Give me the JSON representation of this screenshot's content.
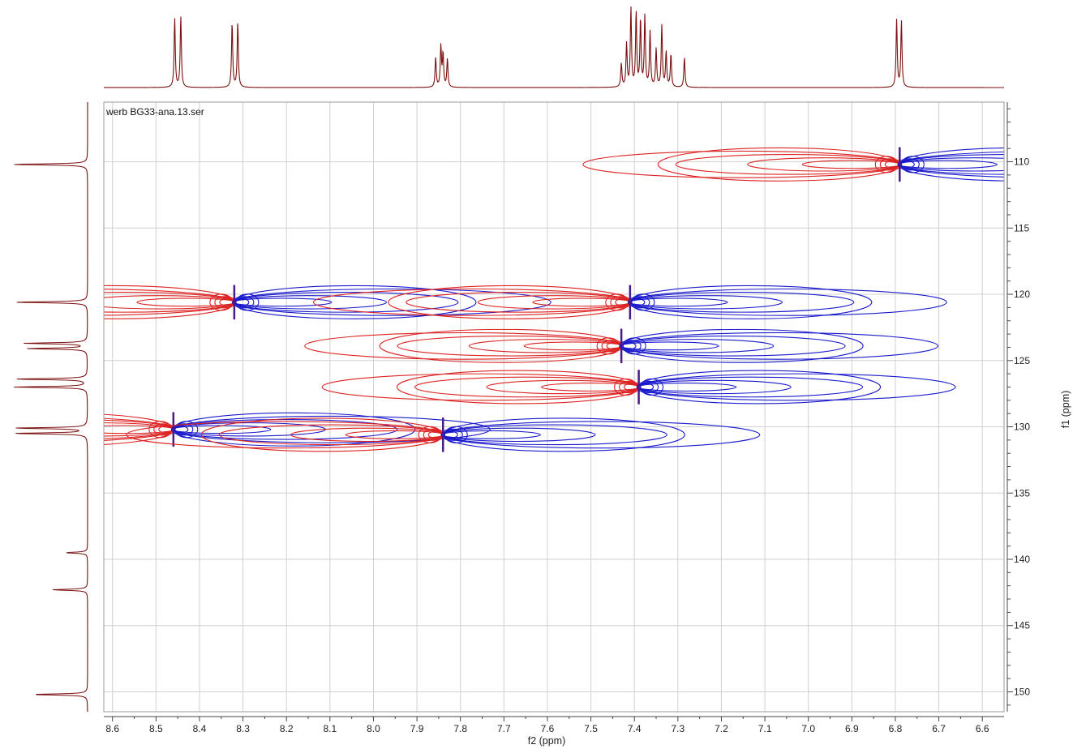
{
  "chart_data": {
    "type": "contour-2d-nmr",
    "dataset_label": "werb BG33-ana.13.ser",
    "xlabel": "f2 (ppm)",
    "ylabel": "f1 (ppm)",
    "xlim": [
      8.62,
      6.55
    ],
    "ylim": [
      105.5,
      151.5
    ],
    "x_ticks": [
      8.6,
      8.5,
      8.4,
      8.3,
      8.2,
      8.1,
      8.0,
      7.9,
      7.8,
      7.7,
      7.6,
      7.5,
      7.4,
      7.3,
      7.2,
      7.1,
      7.0,
      6.9,
      6.8,
      6.7,
      6.6
    ],
    "x_tick_labels": [
      "8.6",
      "8.5",
      "8.4",
      "8.3",
      "8.2",
      "8.1",
      "8.0",
      "7.9",
      "7.8",
      "7.7",
      "7.6",
      "7.5",
      "7.4",
      "7.3",
      "7.2",
      "7.1",
      "7.0",
      "6.9",
      "6.8",
      "6.7",
      "6.6"
    ],
    "y_ticks": [
      110,
      115,
      120,
      125,
      130,
      135,
      140,
      145,
      150
    ],
    "y_tick_labels": [
      "110",
      "115",
      "120",
      "125",
      "130",
      "135",
      "140",
      "145",
      "150"
    ],
    "grid": true,
    "colors": {
      "positive_contour": "#1a1acc",
      "negative_contour": "#dd2222",
      "projection": "#7a0f0f",
      "grid": "#d0d0d0"
    },
    "cross_peaks": [
      {
        "f2": 6.79,
        "f1": 110.2
      },
      {
        "f2": 8.32,
        "f1": 120.6
      },
      {
        "f2": 7.41,
        "f1": 120.6
      },
      {
        "f2": 7.43,
        "f1": 123.9
      },
      {
        "f2": 7.39,
        "f1": 127.0
      },
      {
        "f2": 8.46,
        "f1": 130.2
      },
      {
        "f2": 7.84,
        "f1": 130.6
      }
    ],
    "f2_projection_peaks": [
      {
        "ppm": 8.457,
        "height": 0.88
      },
      {
        "ppm": 8.443,
        "height": 0.9
      },
      {
        "ppm": 8.325,
        "height": 0.82
      },
      {
        "ppm": 8.312,
        "height": 0.83
      },
      {
        "ppm": 7.857,
        "height": 0.38
      },
      {
        "ppm": 7.845,
        "height": 0.52
      },
      {
        "ppm": 7.84,
        "height": 0.42
      },
      {
        "ppm": 7.83,
        "height": 0.36
      },
      {
        "ppm": 7.43,
        "height": 0.3
      },
      {
        "ppm": 7.418,
        "height": 0.55
      },
      {
        "ppm": 7.408,
        "height": 1.0
      },
      {
        "ppm": 7.396,
        "height": 0.95
      },
      {
        "ppm": 7.386,
        "height": 0.85
      },
      {
        "ppm": 7.376,
        "height": 0.9
      },
      {
        "ppm": 7.364,
        "height": 0.7
      },
      {
        "ppm": 7.35,
        "height": 0.48
      },
      {
        "ppm": 7.337,
        "height": 0.78
      },
      {
        "ppm": 7.327,
        "height": 0.45
      },
      {
        "ppm": 7.316,
        "height": 0.42
      },
      {
        "ppm": 7.285,
        "height": 0.38
      },
      {
        "ppm": 6.797,
        "height": 0.86
      },
      {
        "ppm": 6.786,
        "height": 0.84
      }
    ],
    "f1_projection_peaks": [
      {
        "ppm": 110.2,
        "height": 0.97
      },
      {
        "ppm": 120.6,
        "height": 0.93
      },
      {
        "ppm": 123.7,
        "height": 0.8
      },
      {
        "ppm": 124.1,
        "height": 0.76
      },
      {
        "ppm": 126.4,
        "height": 0.93
      },
      {
        "ppm": 127.0,
        "height": 0.93
      },
      {
        "ppm": 130.1,
        "height": 0.93
      },
      {
        "ppm": 130.5,
        "height": 0.95
      },
      {
        "ppm": 139.5,
        "height": 0.28
      },
      {
        "ppm": 142.3,
        "height": 0.45
      },
      {
        "ppm": 150.2,
        "height": 0.71
      }
    ]
  }
}
